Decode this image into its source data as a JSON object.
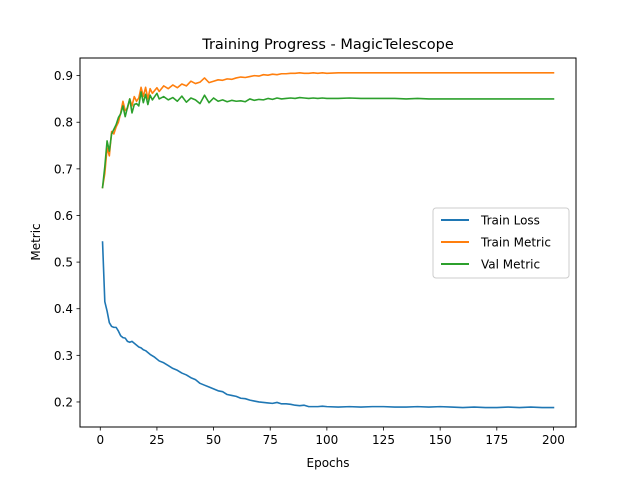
{
  "chart_data": {
    "type": "line",
    "title": "Training Progress - MagicTelescope",
    "xlabel": "Epochs",
    "ylabel": "Metric",
    "xlim": [
      -8.95,
      209.95
    ],
    "ylim": [
      0.1463,
      0.9378
    ],
    "xticks": [
      0,
      25,
      50,
      75,
      100,
      125,
      150,
      175,
      200
    ],
    "yticks": [
      0.2,
      0.3,
      0.4,
      0.5,
      0.6,
      0.7,
      0.8,
      0.9
    ],
    "ytick_labels": [
      "0.2",
      "0.3",
      "0.4",
      "0.5",
      "0.6",
      "0.7",
      "0.8",
      "0.9"
    ],
    "grid": false,
    "legend_position": "center-right",
    "series": [
      {
        "name": "Train Loss",
        "color": "#1f77b4",
        "x": [
          1,
          2,
          3,
          4,
          5,
          6,
          7,
          8,
          9,
          10,
          11,
          12,
          13,
          14,
          15,
          16,
          17,
          18,
          19,
          20,
          22,
          24,
          26,
          28,
          30,
          32,
          34,
          36,
          38,
          40,
          42,
          44,
          46,
          48,
          50,
          52,
          54,
          56,
          58,
          60,
          62,
          64,
          66,
          68,
          70,
          72,
          74,
          76,
          78,
          80,
          82,
          84,
          86,
          88,
          90,
          92,
          94,
          96,
          98,
          100,
          105,
          110,
          115,
          120,
          125,
          130,
          135,
          140,
          145,
          150,
          155,
          160,
          165,
          170,
          175,
          180,
          185,
          190,
          195,
          200
        ],
        "values": [
          0.543,
          0.415,
          0.395,
          0.37,
          0.362,
          0.36,
          0.36,
          0.352,
          0.342,
          0.338,
          0.337,
          0.33,
          0.328,
          0.33,
          0.326,
          0.322,
          0.318,
          0.316,
          0.312,
          0.31,
          0.302,
          0.296,
          0.288,
          0.284,
          0.278,
          0.272,
          0.268,
          0.262,
          0.258,
          0.252,
          0.248,
          0.24,
          0.236,
          0.232,
          0.228,
          0.224,
          0.222,
          0.216,
          0.214,
          0.212,
          0.208,
          0.207,
          0.204,
          0.202,
          0.2,
          0.199,
          0.198,
          0.197,
          0.199,
          0.196,
          0.196,
          0.195,
          0.193,
          0.192,
          0.193,
          0.19,
          0.19,
          0.19,
          0.191,
          0.19,
          0.189,
          0.19,
          0.189,
          0.19,
          0.19,
          0.189,
          0.189,
          0.19,
          0.189,
          0.19,
          0.189,
          0.188,
          0.189,
          0.188,
          0.188,
          0.189,
          0.188,
          0.189,
          0.188,
          0.188
        ]
      },
      {
        "name": "Train Metric",
        "color": "#ff7f0e",
        "x": [
          1,
          2,
          3,
          4,
          5,
          6,
          7,
          8,
          9,
          10,
          11,
          12,
          13,
          14,
          15,
          16,
          17,
          18,
          19,
          20,
          21,
          22,
          23,
          24,
          25,
          26,
          28,
          30,
          32,
          34,
          36,
          38,
          40,
          42,
          44,
          46,
          48,
          50,
          52,
          54,
          56,
          58,
          60,
          62,
          64,
          66,
          68,
          70,
          72,
          74,
          76,
          78,
          80,
          82,
          84,
          86,
          88,
          90,
          92,
          94,
          96,
          98,
          100,
          105,
          110,
          115,
          120,
          125,
          130,
          135,
          140,
          145,
          150,
          155,
          160,
          165,
          170,
          175,
          180,
          185,
          190,
          195,
          200
        ],
        "values": [
          0.66,
          0.69,
          0.745,
          0.728,
          0.78,
          0.775,
          0.79,
          0.8,
          0.82,
          0.845,
          0.825,
          0.83,
          0.85,
          0.835,
          0.855,
          0.845,
          0.852,
          0.875,
          0.855,
          0.875,
          0.85,
          0.872,
          0.862,
          0.868,
          0.874,
          0.866,
          0.878,
          0.872,
          0.88,
          0.874,
          0.882,
          0.878,
          0.888,
          0.883,
          0.886,
          0.895,
          0.885,
          0.888,
          0.891,
          0.89,
          0.893,
          0.892,
          0.895,
          0.897,
          0.896,
          0.898,
          0.9,
          0.899,
          0.902,
          0.901,
          0.903,
          0.902,
          0.904,
          0.904,
          0.905,
          0.905,
          0.906,
          0.905,
          0.905,
          0.906,
          0.905,
          0.906,
          0.905,
          0.906,
          0.906,
          0.906,
          0.906,
          0.906,
          0.906,
          0.906,
          0.906,
          0.906,
          0.906,
          0.906,
          0.906,
          0.906,
          0.906,
          0.906,
          0.906,
          0.906,
          0.906,
          0.906,
          0.906
        ]
      },
      {
        "name": "Val Metric",
        "color": "#2ca02c",
        "x": [
          1,
          2,
          3,
          4,
          5,
          6,
          7,
          8,
          9,
          10,
          11,
          12,
          13,
          14,
          15,
          16,
          17,
          18,
          19,
          20,
          21,
          22,
          23,
          24,
          25,
          26,
          28,
          30,
          32,
          34,
          36,
          38,
          40,
          42,
          44,
          46,
          48,
          50,
          52,
          54,
          56,
          58,
          60,
          62,
          64,
          66,
          68,
          70,
          72,
          74,
          76,
          78,
          80,
          82,
          84,
          86,
          88,
          90,
          92,
          94,
          96,
          98,
          100,
          105,
          110,
          115,
          120,
          125,
          130,
          135,
          140,
          145,
          150,
          155,
          160,
          165,
          170,
          175,
          180,
          185,
          190,
          195,
          200
        ],
        "values": [
          0.66,
          0.705,
          0.76,
          0.738,
          0.775,
          0.785,
          0.795,
          0.81,
          0.818,
          0.835,
          0.812,
          0.832,
          0.85,
          0.82,
          0.838,
          0.84,
          0.835,
          0.865,
          0.842,
          0.86,
          0.838,
          0.858,
          0.848,
          0.855,
          0.862,
          0.85,
          0.855,
          0.848,
          0.853,
          0.845,
          0.856,
          0.843,
          0.852,
          0.848,
          0.84,
          0.858,
          0.842,
          0.852,
          0.845,
          0.848,
          0.844,
          0.847,
          0.845,
          0.846,
          0.844,
          0.85,
          0.847,
          0.849,
          0.848,
          0.851,
          0.849,
          0.852,
          0.85,
          0.851,
          0.852,
          0.851,
          0.853,
          0.852,
          0.851,
          0.852,
          0.851,
          0.852,
          0.851,
          0.851,
          0.852,
          0.851,
          0.851,
          0.851,
          0.851,
          0.85,
          0.851,
          0.85,
          0.85,
          0.85,
          0.85,
          0.85,
          0.85,
          0.85,
          0.85,
          0.85,
          0.85,
          0.85,
          0.85
        ]
      }
    ]
  }
}
